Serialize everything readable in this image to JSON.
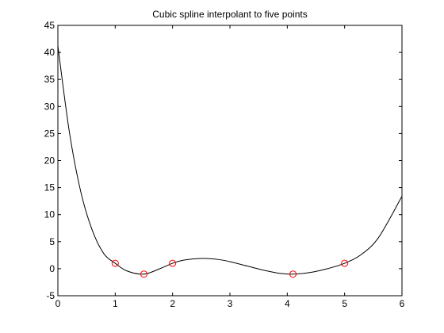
{
  "chart_data": {
    "type": "line",
    "title": "Cubic spline interpolant to five points",
    "xlabel": "",
    "ylabel": "",
    "xlim": [
      0,
      6
    ],
    "ylim": [
      -5,
      45
    ],
    "xticks": [
      0,
      1,
      2,
      3,
      4,
      5,
      6
    ],
    "yticks": [
      -5,
      0,
      5,
      10,
      15,
      20,
      25,
      30,
      35,
      40,
      45
    ],
    "grid": false,
    "series": [
      {
        "kind": "spline-curve",
        "color": "#000000",
        "x": [
          0,
          0.2,
          0.4,
          0.6,
          0.8,
          1.0,
          1.2,
          1.5,
          1.8,
          2.0,
          2.2,
          2.5,
          2.8,
          3.0,
          3.3,
          3.6,
          3.9,
          4.1,
          4.4,
          4.7,
          5.0,
          5.3,
          5.6,
          6.0
        ],
        "y": [
          41.2,
          25.3,
          14.2,
          7.1,
          2.8,
          1.0,
          -0.4,
          -1.0,
          0.1,
          1.0,
          1.6,
          1.9,
          1.7,
          1.3,
          0.5,
          -0.3,
          -0.9,
          -1.0,
          -0.7,
          0.0,
          1.0,
          2.7,
          5.9,
          13.4
        ]
      },
      {
        "kind": "data-points",
        "marker": "circle",
        "color": "#ff0000",
        "x": [
          1.0,
          1.5,
          2.0,
          4.1,
          5.0
        ],
        "y": [
          1,
          -1,
          1,
          -1,
          1
        ]
      }
    ]
  }
}
